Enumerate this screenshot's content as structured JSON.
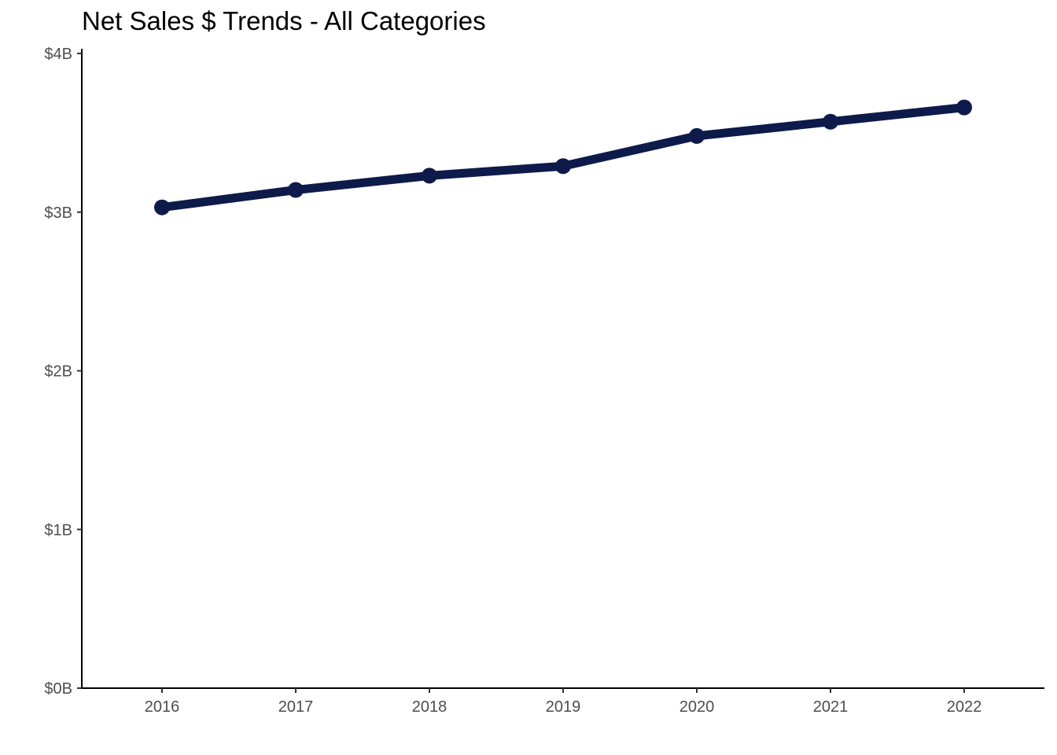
{
  "chart_data": {
    "type": "line",
    "title": "Net Sales $ Trends - All Categories",
    "xlabel": "",
    "ylabel": "",
    "x": [
      2016,
      2017,
      2018,
      2019,
      2020,
      2021,
      2022
    ],
    "x_tick_labels": [
      "2016",
      "2017",
      "2018",
      "2019",
      "2020",
      "2021",
      "2022"
    ],
    "series": [
      {
        "values": [
          3.03,
          3.14,
          3.23,
          3.29,
          3.48,
          3.57,
          3.66
        ],
        "color": "#0d1a4a"
      }
    ],
    "y_unit": "billions USD",
    "ylim": [
      0,
      4
    ],
    "y_ticks": [
      0,
      1,
      2,
      3,
      4
    ],
    "y_tick_labels": [
      "$0B",
      "$1B",
      "$2B",
      "$3B",
      "$4B"
    ],
    "grid": false,
    "legend": "none"
  }
}
